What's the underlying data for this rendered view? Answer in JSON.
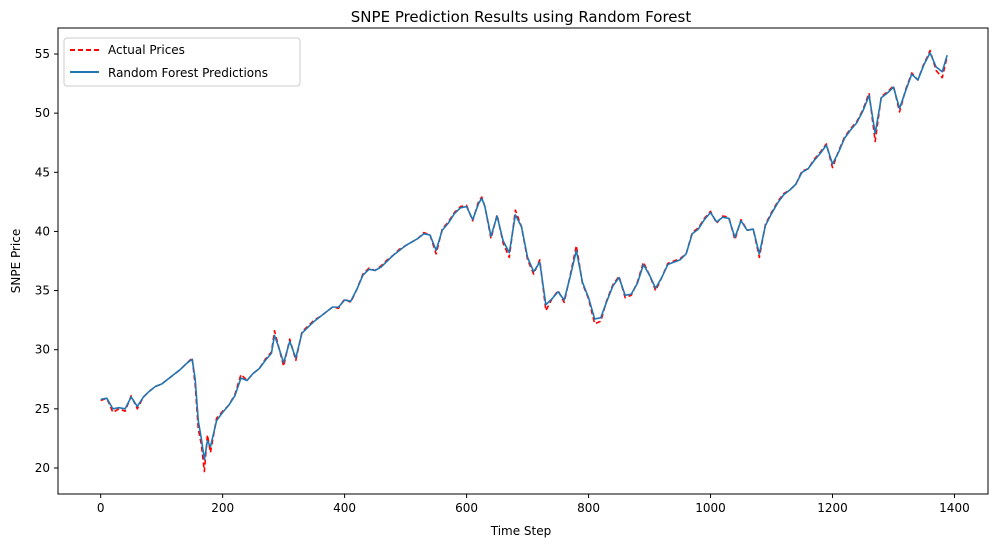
{
  "chart_data": {
    "type": "line",
    "title": "SNPE Prediction Results using Random Forest",
    "xlabel": "Time Step",
    "ylabel": "SNPE Price",
    "xlim": [
      -70,
      1455
    ],
    "ylim": [
      17.8,
      57.2
    ],
    "xticks": [
      0,
      200,
      400,
      600,
      800,
      1000,
      1200,
      1400
    ],
    "yticks": [
      20,
      25,
      30,
      35,
      40,
      45,
      50,
      55
    ],
    "grid": false,
    "legend_position": "top-left",
    "series": [
      {
        "name": "Actual Prices",
        "color": "#ff0000",
        "style": "dashed",
        "x": [
          0,
          10,
          20,
          30,
          40,
          50,
          60,
          70,
          80,
          90,
          100,
          110,
          120,
          130,
          140,
          150,
          155,
          160,
          165,
          170,
          175,
          180,
          190,
          200,
          210,
          220,
          230,
          240,
          250,
          260,
          270,
          280,
          285,
          290,
          300,
          310,
          320,
          330,
          340,
          350,
          360,
          370,
          380,
          390,
          400,
          410,
          420,
          430,
          440,
          450,
          460,
          470,
          480,
          490,
          500,
          510,
          520,
          530,
          540,
          550,
          560,
          570,
          580,
          590,
          600,
          610,
          620,
          625,
          630,
          640,
          650,
          660,
          670,
          680,
          690,
          700,
          710,
          720,
          730,
          740,
          750,
          760,
          770,
          780,
          790,
          800,
          810,
          820,
          830,
          840,
          850,
          860,
          870,
          880,
          890,
          900,
          910,
          920,
          930,
          940,
          950,
          960,
          970,
          980,
          990,
          1000,
          1010,
          1020,
          1030,
          1040,
          1050,
          1060,
          1070,
          1080,
          1090,
          1100,
          1110,
          1120,
          1130,
          1140,
          1150,
          1160,
          1170,
          1180,
          1190,
          1200,
          1210,
          1220,
          1230,
          1240,
          1250,
          1260,
          1270,
          1280,
          1290,
          1300,
          1310,
          1320,
          1330,
          1340,
          1350,
          1355,
          1360,
          1370,
          1380,
          1388
        ],
        "y": [
          25.7,
          25.9,
          24.7,
          25.0,
          24.8,
          26.1,
          25.0,
          26.0,
          26.5,
          26.9,
          27.1,
          27.5,
          27.9,
          28.3,
          28.8,
          29.3,
          27.0,
          23.3,
          22.0,
          19.7,
          22.8,
          21.3,
          24.2,
          24.8,
          25.3,
          26.2,
          27.9,
          27.4,
          28.0,
          28.4,
          29.2,
          29.8,
          31.6,
          30.6,
          28.6,
          30.9,
          29.1,
          31.5,
          32.0,
          32.5,
          32.8,
          33.2,
          33.6,
          33.5,
          34.3,
          34.0,
          35.1,
          36.4,
          36.9,
          36.7,
          37.1,
          37.6,
          38.0,
          38.5,
          38.8,
          39.1,
          39.4,
          39.9,
          39.7,
          38.1,
          40.2,
          40.8,
          41.6,
          42.1,
          42.2,
          40.9,
          42.6,
          42.9,
          42.1,
          39.4,
          41.4,
          39.0,
          37.8,
          41.8,
          40.4,
          37.6,
          36.4,
          37.6,
          33.3,
          34.3,
          35.0,
          34.0,
          36.3,
          38.8,
          35.6,
          34.3,
          32.2,
          32.4,
          34.2,
          35.5,
          36.2,
          34.4,
          34.6,
          35.7,
          37.4,
          36.3,
          35.0,
          36.1,
          37.3,
          37.5,
          37.7,
          38.1,
          39.9,
          40.3,
          41.1,
          41.7,
          40.7,
          41.3,
          41.2,
          39.3,
          41.0,
          40.1,
          40.2,
          37.8,
          40.6,
          41.6,
          42.5,
          43.2,
          43.5,
          44.0,
          45.1,
          45.3,
          46.1,
          46.7,
          47.4,
          45.4,
          46.8,
          48.0,
          48.7,
          49.3,
          50.3,
          51.7,
          47.6,
          51.4,
          51.8,
          52.3,
          50.1,
          52.0,
          53.4,
          52.8,
          54.2,
          54.7,
          55.3,
          53.6,
          53.0,
          54.8
        ]
      },
      {
        "name": "Random Forest Predictions",
        "color": "#1f77b4",
        "style": "solid",
        "x": [
          0,
          10,
          20,
          30,
          40,
          50,
          60,
          70,
          80,
          90,
          100,
          110,
          120,
          130,
          140,
          150,
          155,
          160,
          165,
          170,
          175,
          180,
          190,
          200,
          210,
          220,
          230,
          240,
          250,
          260,
          270,
          280,
          285,
          290,
          300,
          310,
          320,
          330,
          340,
          350,
          360,
          370,
          380,
          390,
          400,
          410,
          420,
          430,
          440,
          450,
          460,
          470,
          480,
          490,
          500,
          510,
          520,
          530,
          540,
          550,
          560,
          570,
          580,
          590,
          600,
          610,
          620,
          625,
          630,
          640,
          650,
          660,
          670,
          680,
          690,
          700,
          710,
          720,
          730,
          740,
          750,
          760,
          770,
          780,
          790,
          800,
          810,
          820,
          830,
          840,
          850,
          860,
          870,
          880,
          890,
          900,
          910,
          920,
          930,
          940,
          950,
          960,
          970,
          980,
          990,
          1000,
          1010,
          1020,
          1030,
          1040,
          1050,
          1060,
          1070,
          1080,
          1090,
          1100,
          1110,
          1120,
          1130,
          1140,
          1150,
          1160,
          1170,
          1180,
          1190,
          1200,
          1210,
          1220,
          1230,
          1240,
          1250,
          1260,
          1270,
          1280,
          1290,
          1300,
          1310,
          1320,
          1330,
          1340,
          1350,
          1355,
          1360,
          1370,
          1380,
          1388
        ],
        "y": [
          25.8,
          25.9,
          25.0,
          25.1,
          25.0,
          26.0,
          25.2,
          26.0,
          26.5,
          26.9,
          27.1,
          27.5,
          27.9,
          28.3,
          28.8,
          29.2,
          27.5,
          24.0,
          22.5,
          20.7,
          22.3,
          21.8,
          24.0,
          24.7,
          25.3,
          26.1,
          27.6,
          27.4,
          28.0,
          28.4,
          29.1,
          29.7,
          31.2,
          30.5,
          28.9,
          30.7,
          29.3,
          31.4,
          31.9,
          32.4,
          32.8,
          33.2,
          33.6,
          33.6,
          34.2,
          34.1,
          35.1,
          36.3,
          36.8,
          36.7,
          37.0,
          37.5,
          38.0,
          38.4,
          38.8,
          39.1,
          39.4,
          39.8,
          39.7,
          38.4,
          40.1,
          40.7,
          41.5,
          42.0,
          42.1,
          41.0,
          42.4,
          42.8,
          42.1,
          39.6,
          41.3,
          39.2,
          38.2,
          41.4,
          40.4,
          37.8,
          36.6,
          37.4,
          33.8,
          34.3,
          34.9,
          34.2,
          36.2,
          38.4,
          35.7,
          34.4,
          32.6,
          32.7,
          34.1,
          35.4,
          36.1,
          34.6,
          34.7,
          35.6,
          37.2,
          36.3,
          35.2,
          36.1,
          37.2,
          37.4,
          37.6,
          38.1,
          39.8,
          40.2,
          41.0,
          41.6,
          40.8,
          41.2,
          41.1,
          39.5,
          40.9,
          40.1,
          40.2,
          38.1,
          40.5,
          41.5,
          42.4,
          43.1,
          43.5,
          44.0,
          45.0,
          45.3,
          46.0,
          46.6,
          47.3,
          45.7,
          46.7,
          47.9,
          48.6,
          49.2,
          50.2,
          51.5,
          48.3,
          51.3,
          51.7,
          52.2,
          50.4,
          51.9,
          53.3,
          52.8,
          54.1,
          54.6,
          55.1,
          53.9,
          53.5,
          54.9
        ]
      }
    ]
  }
}
